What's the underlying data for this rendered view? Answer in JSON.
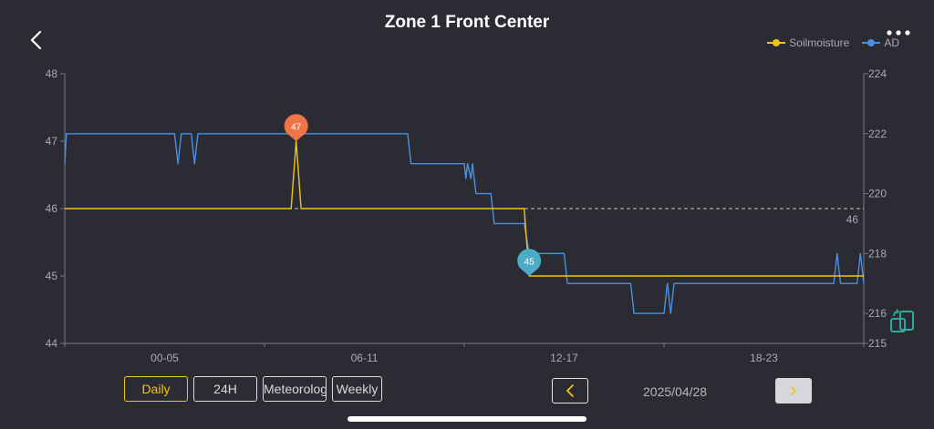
{
  "header": {
    "title": "Zone 1 Front Center",
    "back_icon": "chevron-left-icon",
    "more_icon": "more-dots-icon"
  },
  "legend": [
    {
      "name": "Soilmoisture",
      "color": "#f0c419"
    },
    {
      "name": "AD",
      "color": "#4a90e2"
    }
  ],
  "chart_data": {
    "type": "line",
    "x_tick_labels": [
      "00-05",
      "06-11",
      "12-17",
      "18-23"
    ],
    "x_range": [
      0,
      24
    ],
    "y_left": {
      "ticks": [
        "48",
        "47",
        "46",
        "45",
        "44"
      ],
      "range": [
        44,
        48
      ]
    },
    "y_right": {
      "ticks": [
        "224",
        "222",
        "220",
        "218",
        "216",
        "215"
      ],
      "range": [
        215,
        224
      ]
    },
    "reference_line": {
      "value": 46,
      "label": "46"
    },
    "series": [
      {
        "name": "Soilmoisture",
        "axis": "left",
        "color": "#f0c419",
        "points": [
          [
            0,
            46
          ],
          [
            6.8,
            46
          ],
          [
            6.95,
            47
          ],
          [
            7.1,
            46
          ],
          [
            13.8,
            46
          ],
          [
            13.95,
            45
          ],
          [
            24,
            45
          ]
        ]
      },
      {
        "name": "AD",
        "axis": "right",
        "color": "#4a90e2",
        "points": [
          [
            0,
            221
          ],
          [
            0.05,
            222
          ],
          [
            0.2,
            222
          ],
          [
            3.3,
            222
          ],
          [
            3.4,
            221
          ],
          [
            3.5,
            222
          ],
          [
            3.8,
            222
          ],
          [
            3.9,
            221
          ],
          [
            4,
            222
          ],
          [
            10.3,
            222
          ],
          [
            10.4,
            221
          ],
          [
            12,
            221
          ],
          [
            12.05,
            220.5
          ],
          [
            12.1,
            221
          ],
          [
            12.2,
            220.5
          ],
          [
            12.25,
            221
          ],
          [
            12.35,
            220
          ],
          [
            12.8,
            220
          ],
          [
            12.9,
            219
          ],
          [
            13.8,
            219
          ],
          [
            13.95,
            218
          ],
          [
            15,
            218
          ],
          [
            15.1,
            217
          ],
          [
            17,
            217
          ],
          [
            17.1,
            216
          ],
          [
            18,
            216
          ],
          [
            18.1,
            217
          ],
          [
            18.2,
            216
          ],
          [
            18.3,
            217
          ],
          [
            23.1,
            217
          ],
          [
            23.2,
            218
          ],
          [
            23.3,
            217
          ],
          [
            23.8,
            217
          ],
          [
            23.9,
            218
          ],
          [
            24,
            217
          ]
        ]
      }
    ],
    "markers": [
      {
        "series": "Soilmoisture",
        "label": "47",
        "x": 6.95,
        "y": 47,
        "color": "#ef7547"
      },
      {
        "series": "Soilmoisture",
        "label": "45",
        "x": 13.95,
        "y": 45,
        "color": "#4cabc7"
      }
    ]
  },
  "tabs": [
    {
      "label": "Daily",
      "active": true
    },
    {
      "label": "24H",
      "active": false
    },
    {
      "label": "Meteorolog",
      "active": false
    },
    {
      "label": "Weekly",
      "active": false
    }
  ],
  "date_nav": {
    "date": "2025/04/28",
    "prev_icon": "chevron-left-icon",
    "next_icon": "chevron-right-icon"
  },
  "rotate_icon": "rotate-screen-icon"
}
